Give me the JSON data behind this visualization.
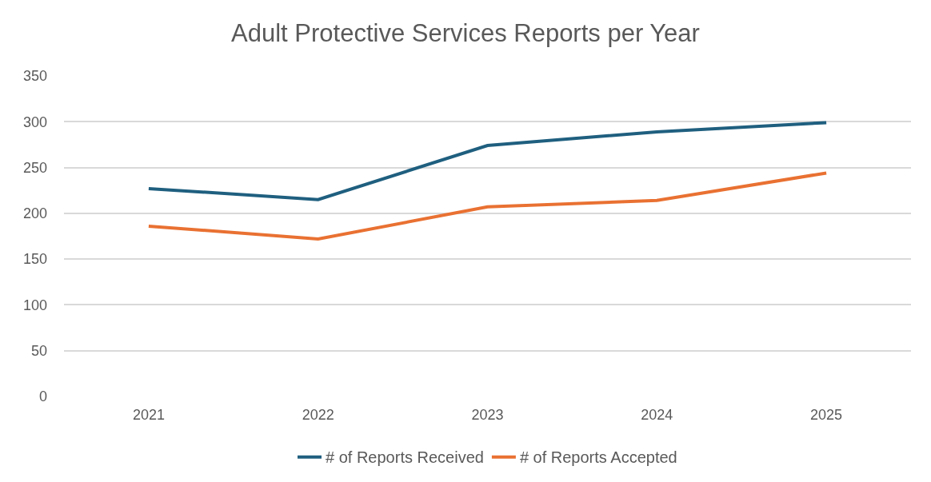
{
  "chart_data": {
    "type": "line",
    "title": "Adult Protective Services Reports per Year",
    "categories": [
      "2021",
      "2022",
      "2023",
      "2024",
      "2025"
    ],
    "series": [
      {
        "name": "# of Reports Received",
        "color": "#1f5f7f",
        "values": [
          227,
          215,
          274,
          289,
          299
        ]
      },
      {
        "name": "# of Reports Accepted",
        "color": "#e97132",
        "values": [
          186,
          172,
          207,
          214,
          244
        ]
      }
    ],
    "ylim": [
      0,
      350
    ],
    "yticks": [
      0,
      50,
      100,
      150,
      200,
      250,
      300,
      350
    ],
    "grid": "y",
    "legend": "bottom",
    "marker": "none",
    "line_style": "solid"
  }
}
